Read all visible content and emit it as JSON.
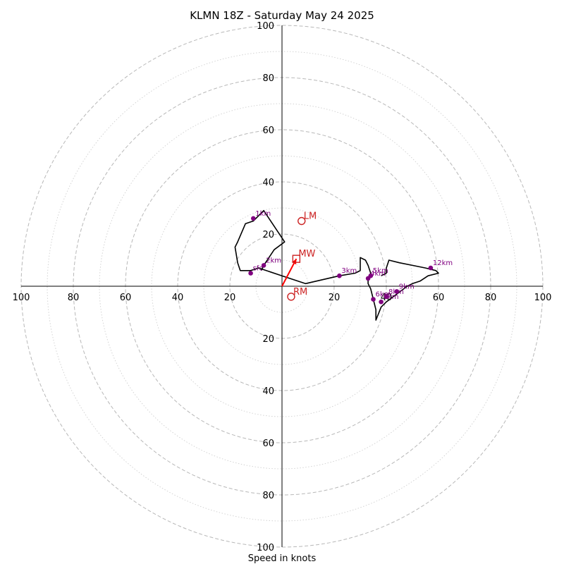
{
  "chart_data": {
    "type": "hodograph",
    "title": "KLMN 18Z - Saturday May 24 2025",
    "xlabel": "Speed in knots",
    "units": "knots",
    "max_speed": 100,
    "ring_step_major": 20,
    "ring_step_minor": 10,
    "x_ticks": [
      "100",
      "80",
      "60",
      "40",
      "20",
      "20",
      "40",
      "60",
      "80",
      "100"
    ],
    "y_ticks": [
      "100",
      "80",
      "60",
      "40",
      "20",
      "20",
      "40",
      "60",
      "80",
      "100"
    ],
    "grid": true,
    "trace": [
      [
        -8,
        6
      ],
      [
        -7,
        8
      ],
      [
        -5,
        11
      ],
      [
        -3,
        14
      ],
      [
        1,
        17
      ],
      [
        -5,
        26
      ],
      [
        -7,
        29
      ],
      [
        -11,
        25
      ],
      [
        -14,
        24
      ],
      [
        -17,
        17
      ],
      [
        -18,
        15
      ],
      [
        -17,
        9
      ],
      [
        -16,
        6
      ],
      [
        -12,
        6
      ],
      [
        -9,
        7
      ],
      [
        0,
        4
      ],
      [
        9,
        1
      ],
      [
        22,
        4
      ],
      [
        28,
        5
      ],
      [
        30,
        6
      ],
      [
        30,
        11
      ],
      [
        32,
        10
      ],
      [
        33,
        8
      ],
      [
        34,
        5
      ],
      [
        33,
        3
      ],
      [
        33,
        1
      ],
      [
        34,
        -1
      ],
      [
        35,
        -5
      ],
      [
        36,
        -9
      ],
      [
        36,
        -13
      ],
      [
        38,
        -8
      ],
      [
        40,
        -6
      ],
      [
        44,
        -3
      ],
      [
        48,
        0
      ],
      [
        50,
        1
      ],
      [
        53,
        2
      ],
      [
        56,
        4
      ],
      [
        60,
        5
      ],
      [
        59,
        6
      ],
      [
        55,
        7
      ],
      [
        50,
        8
      ],
      [
        45,
        9
      ],
      [
        41,
        10
      ],
      [
        40,
        7
      ],
      [
        40,
        5
      ],
      [
        38,
        4
      ]
    ],
    "height_markers": [
      {
        "label": "1km",
        "x": -11,
        "y": 26
      },
      {
        "label": "2km",
        "x": -7,
        "y": 8
      },
      {
        "label": "sfc",
        "x": -12,
        "y": 5
      },
      {
        "label": "3km",
        "x": 22,
        "y": 4
      },
      {
        "label": "4km",
        "x": 33,
        "y": 3
      },
      {
        "label": "5km",
        "x": 34,
        "y": 4
      },
      {
        "label": "6km",
        "x": 35,
        "y": -5
      },
      {
        "label": "7km",
        "x": 38,
        "y": -6
      },
      {
        "label": "8km",
        "x": 40,
        "y": -4
      },
      {
        "label": "9km",
        "x": 44,
        "y": -2
      },
      {
        "label": "12km",
        "x": 57,
        "y": 7
      }
    ],
    "motion_points": [
      {
        "label": "LM",
        "x": 7.5,
        "y": 25,
        "marker": "circle"
      },
      {
        "label": "MW",
        "x": 5.5,
        "y": 10.5,
        "marker": "square"
      },
      {
        "label": "RM",
        "x": 3.5,
        "y": -4,
        "marker": "circle"
      }
    ],
    "mean_wind_vector": {
      "x": 5.5,
      "y": 10.5
    }
  },
  "colors": {
    "trace": "#000000",
    "height_marker": "#800080",
    "motion": "#cc2222",
    "vector": "#ff0000",
    "grid": "#b0b0b0"
  }
}
